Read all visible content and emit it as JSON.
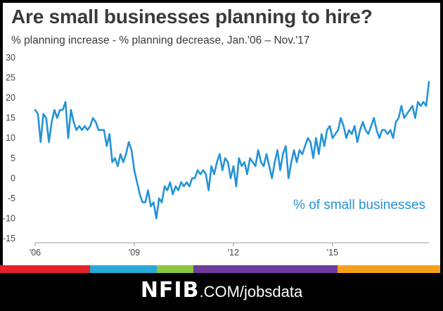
{
  "title": "Are small businesses planning to hire?",
  "subtitle": "% planning increase - % planning decrease, Jan.'06 – Nov.'17",
  "footer": {
    "brand": "NFIB",
    "rest": ".COM/jobsdata"
  },
  "colors": {
    "line": "#2593d6",
    "stripe": [
      "#e4202a",
      "#27a9d4",
      "#8cc63f",
      "#6c3b9b",
      "#f6a01a"
    ]
  },
  "chart_data": {
    "type": "line",
    "x_start": "2006-01",
    "x_end": "2017-11",
    "x_ticks": [
      "'06",
      "'09",
      "'12",
      "'15"
    ],
    "y_ticks": [
      "30",
      "25",
      "20",
      "15",
      "10",
      "5",
      "0",
      "-5",
      "-10",
      "-15"
    ],
    "ylim": [
      -15,
      30
    ],
    "grid": false,
    "series": [
      {
        "name": "% of small businesses",
        "values": [
          17,
          16,
          9,
          16,
          15,
          9,
          14,
          17,
          15,
          17,
          17,
          19,
          10,
          17,
          14,
          12,
          13,
          12,
          13,
          12,
          13,
          15,
          14,
          12,
          12,
          12,
          8,
          11,
          4,
          5,
          3,
          6,
          4,
          6,
          9,
          7,
          2,
          -1,
          -4,
          -6,
          -6,
          -3,
          -7,
          -6,
          -10,
          -5,
          -6,
          -2,
          -3,
          -1,
          -4,
          -2,
          -3,
          -1,
          -2,
          -1,
          -2,
          0,
          0,
          2,
          1,
          2,
          1,
          -3,
          3,
          1,
          4,
          6,
          2,
          5,
          4,
          0,
          3,
          -2,
          5,
          3,
          4,
          1,
          5,
          4,
          3,
          7,
          4,
          3,
          6,
          3,
          0,
          4,
          7,
          2,
          6,
          8,
          0,
          4,
          7,
          4,
          7,
          6,
          8,
          10,
          9,
          5,
          10,
          6,
          11,
          8,
          12,
          13,
          10,
          11,
          12,
          15,
          13,
          10,
          12,
          11,
          13,
          9,
          12,
          14,
          12,
          11,
          13,
          15,
          12,
          10,
          12,
          12,
          11,
          12,
          10,
          14,
          15,
          18,
          15,
          16,
          17,
          18,
          15,
          19,
          18,
          19,
          18,
          24
        ]
      }
    ]
  }
}
